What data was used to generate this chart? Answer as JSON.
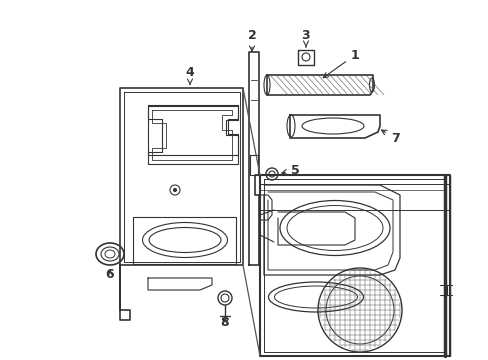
{
  "background_color": "#ffffff",
  "line_color": "#333333",
  "figsize": [
    4.89,
    3.6
  ],
  "dpi": 100
}
